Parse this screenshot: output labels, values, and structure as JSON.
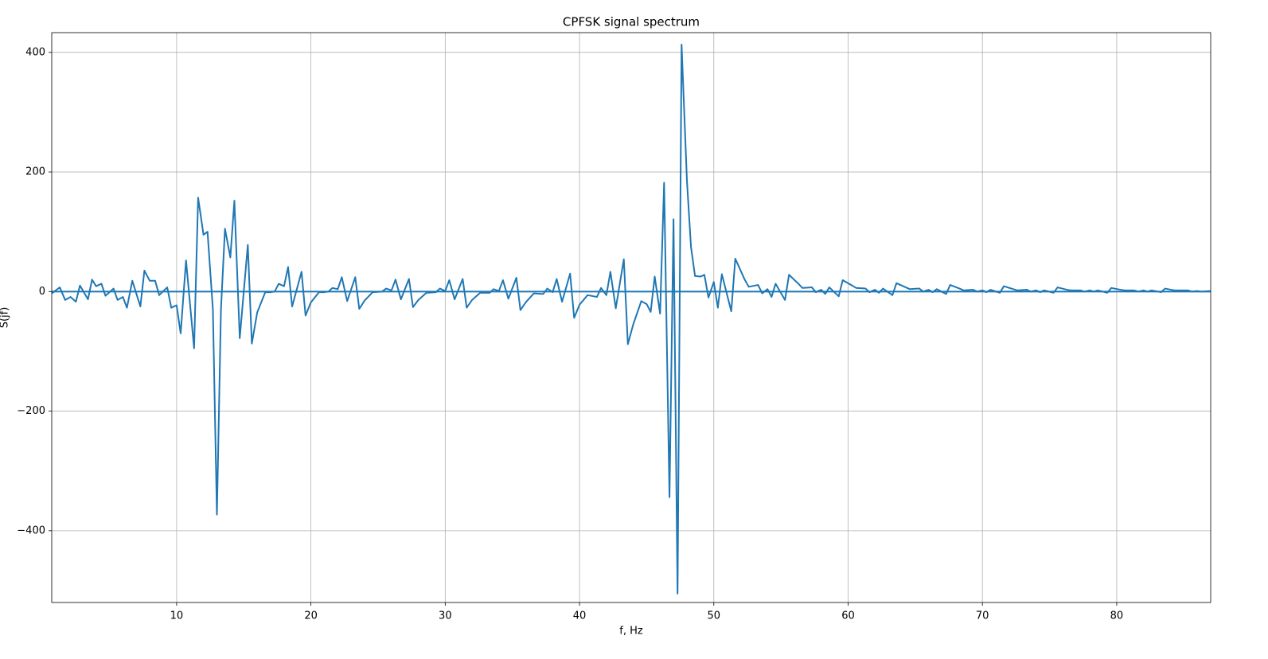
{
  "chart_data": {
    "type": "line",
    "title": "CPFSK signal spectrum",
    "x_label": "f, Hz",
    "y_label": "S(jf)",
    "xlim": [
      0.7,
      87
    ],
    "ylim": [
      -520,
      433
    ],
    "xticks": [
      10,
      20,
      30,
      40,
      50,
      60,
      70,
      80
    ],
    "yticks": [
      {
        "value": -400,
        "label": "−400"
      },
      {
        "value": -200,
        "label": "−200"
      },
      0,
      200,
      400
    ],
    "grid": true,
    "series": [
      {
        "color": "#1f77b4",
        "x": [
          0.7,
          1.3,
          1.7,
          2.1,
          2.5,
          2.8,
          3.4,
          3.7,
          4.0,
          4.4,
          4.7,
          5.3,
          5.6,
          6.0,
          6.3,
          6.7,
          7.3,
          7.6,
          8.0,
          8.4,
          8.7,
          9.3,
          9.6,
          10.0,
          10.3,
          10.7,
          11.3,
          11.6,
          12.0,
          12.3,
          12.7,
          13.0,
          13.3,
          13.6,
          14.0,
          14.3,
          14.7,
          15.3,
          15.6,
          16.0,
          16.6,
          17.0,
          17.3,
          17.6,
          18.0,
          18.3,
          18.6,
          19.3,
          19.6,
          20.0,
          20.6,
          21.0,
          21.3,
          21.6,
          22.0,
          22.3,
          22.7,
          23.3,
          23.6,
          24.0,
          24.6,
          25.3,
          25.6,
          26.0,
          26.3,
          26.7,
          27.3,
          27.6,
          28.0,
          28.6,
          29.3,
          29.6,
          30.0,
          30.3,
          30.7,
          31.3,
          31.6,
          32.0,
          32.6,
          33.3,
          33.6,
          34.0,
          34.3,
          34.7,
          35.3,
          35.6,
          36.0,
          36.6,
          37.3,
          37.6,
          38.0,
          38.3,
          38.7,
          39.3,
          39.6,
          40.0,
          40.6,
          41.3,
          41.6,
          42.0,
          42.3,
          42.7,
          43.3,
          43.6,
          44.0,
          44.6,
          45.0,
          45.3,
          45.6,
          46.0,
          46.3,
          46.7,
          47.0,
          47.3,
          47.6,
          48.0,
          48.3,
          48.6,
          49.0,
          49.3,
          49.6,
          50.0,
          50.3,
          50.6,
          51.3,
          51.6,
          52.3,
          52.6,
          53.3,
          53.6,
          54.0,
          54.3,
          54.6,
          55.3,
          55.6,
          56.3,
          56.6,
          57.3,
          57.6,
          58.0,
          58.3,
          58.6,
          59.3,
          59.6,
          60.3,
          60.6,
          61.3,
          61.6,
          62.0,
          62.3,
          62.6,
          63.3,
          63.6,
          64.3,
          64.6,
          65.3,
          65.6,
          66.0,
          66.3,
          66.6,
          67.3,
          67.6,
          68.3,
          68.6,
          69.3,
          69.6,
          70.0,
          70.3,
          70.6,
          71.3,
          71.6,
          72.3,
          72.6,
          73.3,
          73.6,
          74.0,
          74.3,
          74.6,
          75.3,
          75.6,
          76.3,
          76.6,
          77.3,
          77.6,
          78.0,
          78.3,
          78.6,
          79.3,
          79.6,
          80.3,
          80.6,
          81.3,
          81.6,
          82.0,
          82.3,
          82.6,
          83.3,
          83.6,
          84.3,
          84.6,
          85.3,
          85.6,
          86.0,
          86.3,
          87.0
        ],
        "values": [
          -3,
          7,
          -14,
          -9,
          -17,
          10,
          -13,
          20,
          9,
          13,
          -7,
          5,
          -14,
          -9,
          -27,
          18,
          -25,
          35,
          18,
          18,
          -6,
          7,
          -27,
          -23,
          -70,
          52,
          -95,
          157,
          95,
          100,
          -30,
          -373,
          -30,
          105,
          57,
          152,
          -78,
          78,
          -87,
          -35,
          -1,
          -1,
          0,
          13,
          9,
          41,
          -25,
          33,
          -40,
          -18,
          -1,
          -1,
          0,
          6,
          4,
          24,
          -16,
          24,
          -29,
          -15,
          -1,
          0,
          5,
          2,
          20,
          -13,
          21,
          -26,
          -14,
          -2,
          -1,
          5,
          1,
          19,
          -13,
          21,
          -27,
          -14,
          -2,
          -2,
          4,
          1,
          19,
          -12,
          23,
          -31,
          -18,
          -3,
          -4,
          5,
          -1,
          21,
          -17,
          30,
          -44,
          -22,
          -6,
          -9,
          6,
          -6,
          33,
          -28,
          54,
          -88,
          -55,
          -16,
          -21,
          -34,
          25,
          -37,
          182,
          -344,
          121,
          -505,
          413,
          185,
          75,
          26,
          25,
          28,
          -10,
          16,
          -27,
          29,
          -33,
          55,
          20,
          8,
          11,
          -3,
          4,
          -9,
          13,
          -14,
          28,
          13,
          6,
          7,
          -1,
          3,
          -4,
          7,
          -8,
          19,
          10,
          6,
          5,
          -1,
          3,
          -2,
          5,
          -6,
          14,
          7,
          4,
          5,
          0,
          3,
          -1,
          4,
          -4,
          11,
          5,
          2,
          3,
          0,
          2,
          -1,
          3,
          -2,
          9,
          4,
          2,
          3,
          0,
          2,
          -1,
          2,
          -2,
          7,
          3,
          2,
          2,
          0,
          2,
          0,
          2,
          -2,
          6,
          3,
          2,
          2,
          0,
          2,
          0,
          2,
          -1,
          5,
          2,
          2,
          2,
          0,
          1,
          0,
          1
        ]
      },
      {
        "color": "#1f77b4",
        "x": [
          0.7,
          87
        ],
        "values": [
          0,
          0
        ]
      }
    ]
  }
}
